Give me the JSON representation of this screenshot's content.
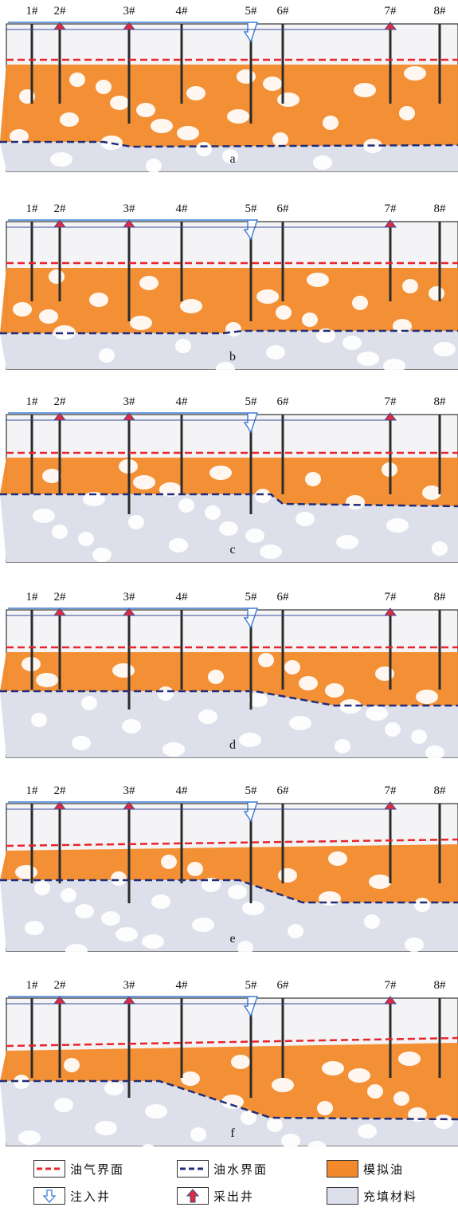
{
  "wells": [
    {
      "label": "1#",
      "type": "none"
    },
    {
      "label": "2#",
      "type": "production"
    },
    {
      "label": "3#",
      "type": "production"
    },
    {
      "label": "4#",
      "type": "none"
    },
    {
      "label": "5#",
      "type": "injection"
    },
    {
      "label": "6#",
      "type": "none"
    },
    {
      "label": "7#",
      "type": "production"
    },
    {
      "label": "8#",
      "type": "none"
    }
  ],
  "panels": [
    {
      "label": "a"
    },
    {
      "label": "b"
    },
    {
      "label": "c"
    },
    {
      "label": "d"
    },
    {
      "label": "e"
    },
    {
      "label": "f"
    }
  ],
  "legend": {
    "gas_oil": "油气界面",
    "oil_water": "油水界面",
    "sim_oil": "模拟油",
    "injection": "注入井",
    "production": "采出井",
    "filler": "充填材料"
  },
  "colors": {
    "oil": "#f28a2b",
    "gas_oil_line": "#e8242c",
    "oil_water_line": "#1f2d7a",
    "filler": "#dde0ea",
    "arrow_red": "#e12a3a",
    "arrow_blue": "#3a7bd5"
  }
}
